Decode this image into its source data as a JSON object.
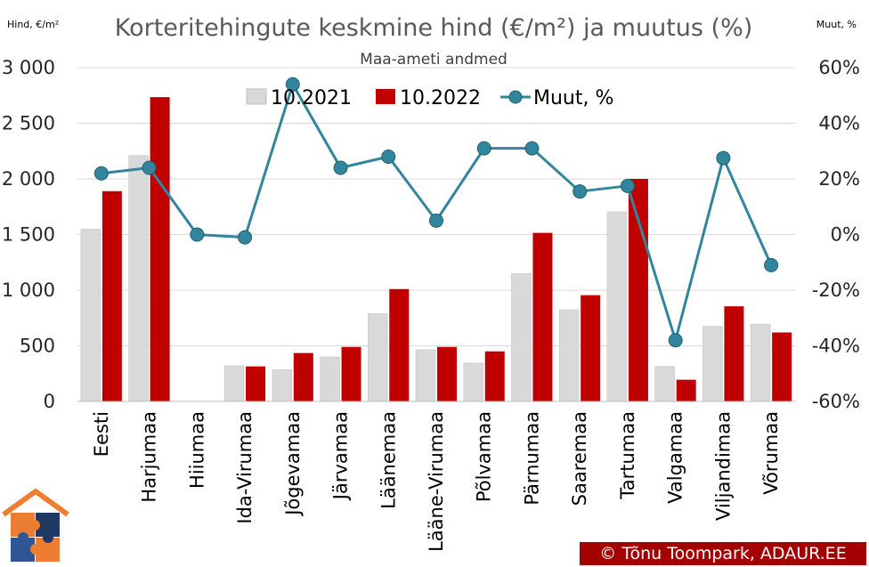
{
  "chart_data": {
    "type": "bar",
    "title": "Korteritehingute keskmine hind (€/m²) ja muutus (%)",
    "subtitle": "Maa-ameti andmed",
    "ylabel": "Hind, €/m²",
    "y2label": "Muut, %",
    "ylim": [
      0,
      3000
    ],
    "y2lim": [
      -60,
      60
    ],
    "yticks": [
      "0",
      "500",
      "1 000",
      "1 500",
      "2 000",
      "2 500",
      "3 000"
    ],
    "y2ticks": [
      "-60%",
      "-40%",
      "-20%",
      "0%",
      "20%",
      "40%",
      "60%"
    ],
    "categories": [
      "Eesti",
      "Harjumaa",
      "Hiiumaa",
      "Ida-Virumaa",
      "Jõgevamaa",
      "Järvamaa",
      "Läänemaa",
      "Lääne-Virumaa",
      "Põlvamaa",
      "Pärnumaa",
      "Saaremaa",
      "Tartumaa",
      "Valgamaa",
      "Viljandimaa",
      "Võrumaa"
    ],
    "series": [
      {
        "name": "10.2021",
        "type": "bar",
        "color": "#d9d9d9",
        "values": [
          1550,
          2210,
          0,
          320,
          285,
          400,
          790,
          465,
          345,
          1150,
          825,
          1705,
          315,
          675,
          695
        ]
      },
      {
        "name": "10.2022",
        "type": "bar",
        "color": "#c00000",
        "values": [
          1890,
          2735,
          0,
          315,
          435,
          490,
          1010,
          490,
          450,
          1515,
          955,
          2000,
          195,
          855,
          620
        ]
      },
      {
        "name": "Muut, %",
        "type": "line",
        "axis": "secondary",
        "color": "#31859c",
        "values": [
          22,
          24,
          0,
          -1,
          54,
          24,
          28,
          5,
          31,
          31,
          15.5,
          17.5,
          -38,
          27.5,
          -11
        ]
      }
    ],
    "legend_position": "top"
  },
  "credit": "© Tõnu Toompark, ADAUR.EE"
}
